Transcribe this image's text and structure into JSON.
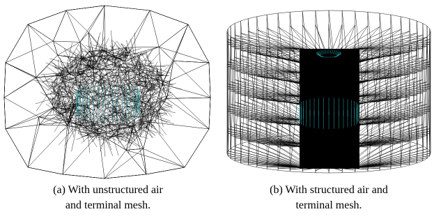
{
  "figure": {
    "panels": [
      {
        "caption_lines": [
          "(a) With unstructured air",
          "and terminal mesh."
        ]
      },
      {
        "caption_lines": [
          "(b) With structured air and",
          "terminal mesh."
        ]
      }
    ]
  }
}
